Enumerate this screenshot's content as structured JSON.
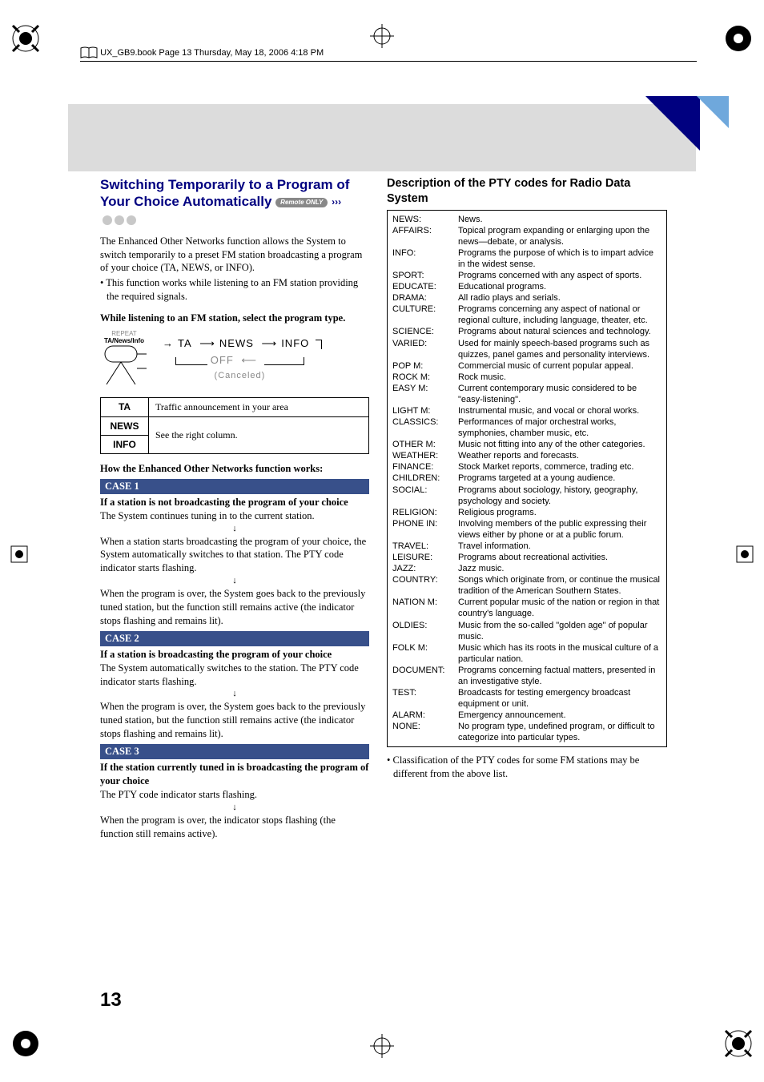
{
  "book_header": "UX_GB9.book  Page 13  Thursday, May 18, 2006  4:18 PM",
  "page_number": "13",
  "left": {
    "title_line1": "Switching Temporarily to a Program of",
    "title_line2": "Your Choice Automatically",
    "badge_text": "Remote ONLY",
    "intro_p1": "The Enhanced Other Networks function allows the System to switch temporarily to a preset FM station broadcasting a program of your choice (TA, NEWS, or INFO).",
    "intro_bullet": "• This function works while listening to an FM station providing the required signals.",
    "instruction": "While listening to an FM station, select the program type.",
    "btn_label_top": "REPEAT",
    "btn_label_main": "TA/News/Info",
    "flow_ta": "TA",
    "flow_news": "NEWS",
    "flow_info": "INFO",
    "flow_off": "OFF",
    "flow_cancel": "(Canceled)",
    "table": [
      {
        "k": "TA",
        "v": "Traffic announcement in your area"
      },
      {
        "k": "NEWS",
        "v": "See the right column."
      },
      {
        "k": "INFO",
        "v": ""
      }
    ],
    "how_heading": "How the Enhanced Other Networks function works:",
    "case1_title": "CASE 1",
    "case1_h": "If a station is not broadcasting the program of your choice",
    "case1_p1": "The System continues tuning in to the current station.",
    "case1_p2": "When a station starts broadcasting the program of your choice, the System automatically switches to that station. The PTY code indicator starts flashing.",
    "case1_p3": "When the program is over, the System goes back to the previously tuned station, but the function still remains active (the indicator stops flashing and remains lit).",
    "case2_title": "CASE 2",
    "case2_h": "If a station is broadcasting the program of your choice",
    "case2_p1": "The System automatically switches to the station. The PTY code indicator starts flashing.",
    "case2_p2": "When the program is over, the System goes back to the previously tuned station, but the function still remains active (the indicator stops flashing and remains lit).",
    "case3_title": "CASE 3",
    "case3_h": "If the station currently tuned in is broadcasting the program of your choice",
    "case3_p1": "The PTY code indicator starts flashing.",
    "case3_p2": "When the program is over, the indicator stops flashing (the function still remains active)."
  },
  "right": {
    "heading": "Description of the PTY codes for Radio Data System",
    "codes": [
      {
        "k": "NEWS:",
        "v": "News."
      },
      {
        "k": "AFFAIRS:",
        "v": "Topical program expanding or enlarging upon the news—debate, or analysis."
      },
      {
        "k": "INFO:",
        "v": "Programs the purpose of which is to impart advice in the widest sense."
      },
      {
        "k": "SPORT:",
        "v": "Programs concerned with any aspect of sports."
      },
      {
        "k": "EDUCATE:",
        "v": "Educational programs."
      },
      {
        "k": "DRAMA:",
        "v": "All radio plays and serials."
      },
      {
        "k": "CULTURE:",
        "v": "Programs concerning any aspect of national or regional culture, including language, theater, etc."
      },
      {
        "k": "SCIENCE:",
        "v": "Programs about natural sciences and technology."
      },
      {
        "k": "VARIED:",
        "v": "Used for mainly speech-based programs such as quizzes, panel games and personality interviews."
      },
      {
        "k": "POP M:",
        "v": "Commercial music of current popular appeal."
      },
      {
        "k": "ROCK M:",
        "v": "Rock music."
      },
      {
        "k": "EASY M:",
        "v": "Current contemporary music considered to be \"easy-listening\"."
      },
      {
        "k": "LIGHT M:",
        "v": "Instrumental music, and vocal or choral works."
      },
      {
        "k": "CLASSICS:",
        "v": "Performances of major orchestral works, symphonies, chamber music, etc."
      },
      {
        "k": "OTHER M:",
        "v": "Music not fitting into any of the other categories."
      },
      {
        "k": "WEATHER:",
        "v": "Weather reports and forecasts."
      },
      {
        "k": "FINANCE:",
        "v": "Stock Market reports, commerce, trading etc."
      },
      {
        "k": "CHILDREN:",
        "v": "Programs targeted at a young audience."
      },
      {
        "k": "SOCIAL:",
        "v": "Programs about sociology, history, geography, psychology and society."
      },
      {
        "k": "RELIGION:",
        "v": "Religious programs."
      },
      {
        "k": "PHONE IN:",
        "v": "Involving members of the public expressing their views either by phone or at a public forum."
      },
      {
        "k": "TRAVEL:",
        "v": "Travel information."
      },
      {
        "k": "LEISURE:",
        "v": "Programs about recreational activities."
      },
      {
        "k": "JAZZ:",
        "v": "Jazz music."
      },
      {
        "k": "COUNTRY:",
        "v": "Songs which originate from, or continue the musical tradition of the American Southern States."
      },
      {
        "k": "NATION M:",
        "v": "Current popular music of the nation or region in that country's language."
      },
      {
        "k": "OLDIES:",
        "v": "Music from the so-called \"golden age\" of popular music."
      },
      {
        "k": "FOLK M:",
        "v": "Music which has its roots in the musical culture of a particular nation."
      },
      {
        "k": "DOCUMENT:",
        "v": "Programs concerning factual matters, presented in an investigative style."
      },
      {
        "k": "TEST:",
        "v": "Broadcasts for testing emergency broadcast equipment or unit."
      },
      {
        "k": "ALARM:",
        "v": "Emergency announcement."
      },
      {
        "k": "NONE:",
        "v": "No program type, undefined program, or difficult to categorize into particular types."
      }
    ],
    "footnote": "• Classification of the PTY codes for some FM stations may be different from the above list."
  }
}
